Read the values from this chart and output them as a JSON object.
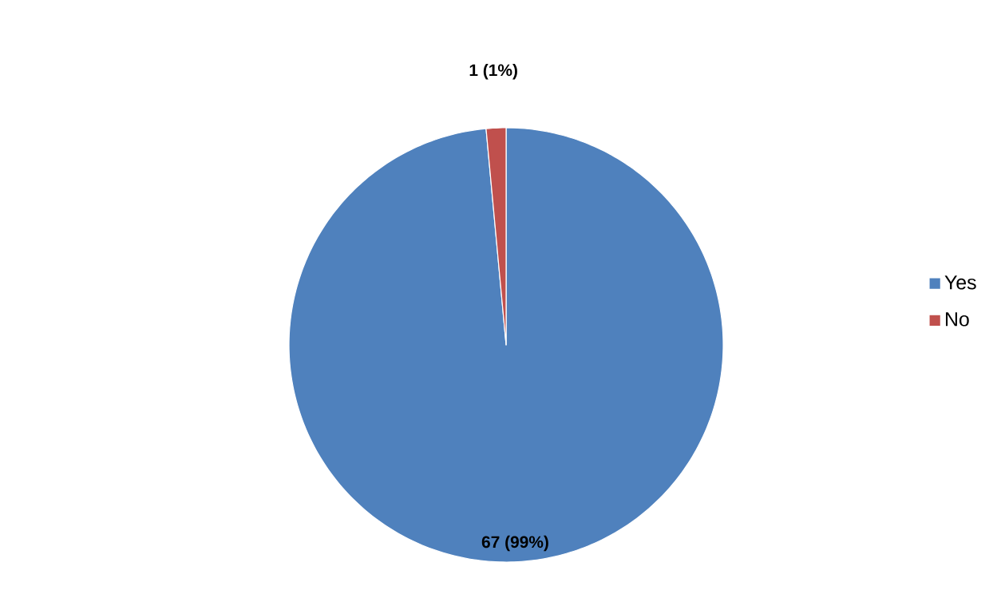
{
  "chart_data": {
    "type": "pie",
    "categories": [
      "Yes",
      "No"
    ],
    "values": [
      67,
      1
    ],
    "colors": [
      "#4f81bd",
      "#c0504d"
    ],
    "value_labels": [
      "67 (99%)",
      "1 (1%)"
    ],
    "legend": "right"
  }
}
